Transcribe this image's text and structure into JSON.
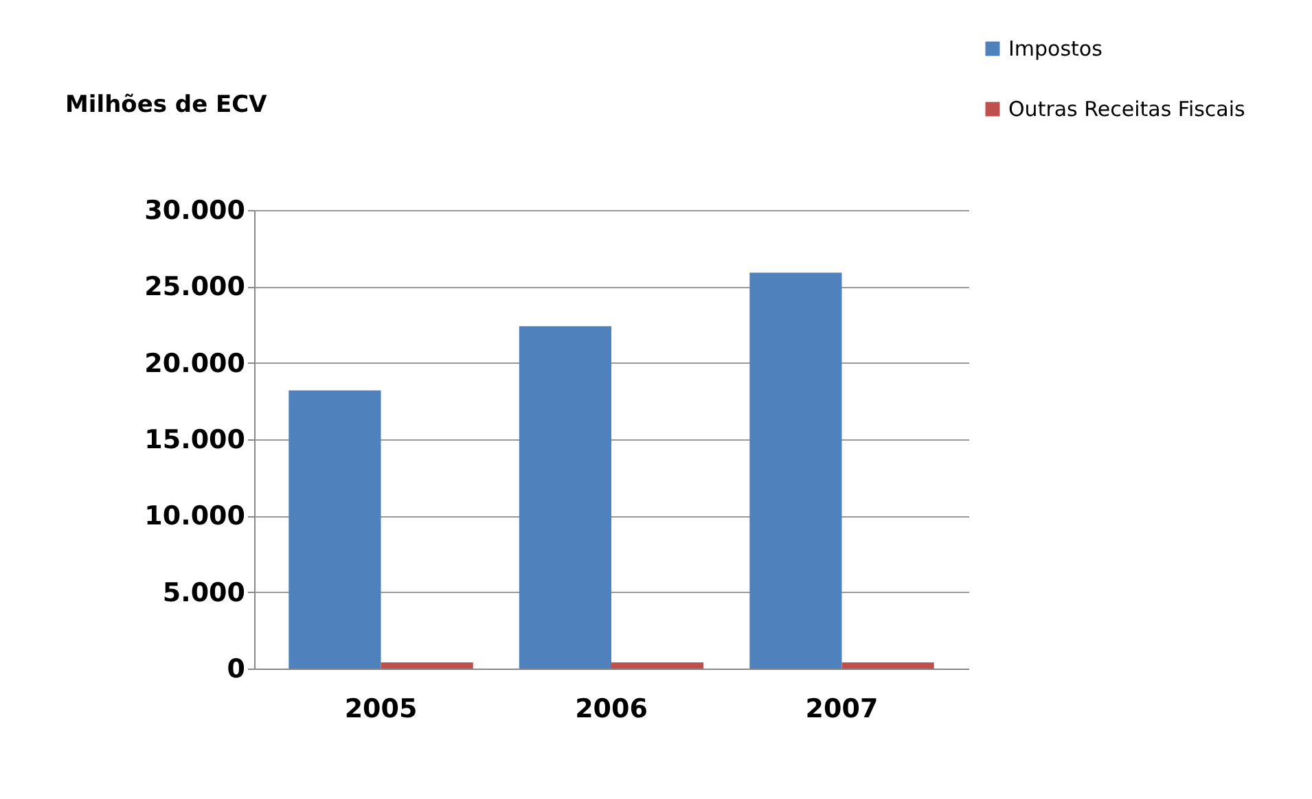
{
  "chart_data": {
    "type": "bar",
    "ylabel": "Milhões de ECV",
    "categories": [
      "2005",
      "2006",
      "2007"
    ],
    "series": [
      {
        "name": "Impostos",
        "color": "#4f81bd",
        "values": [
          18200,
          22400,
          25900
        ]
      },
      {
        "name": "Outras Receitas  Fiscais",
        "color": "#c0504d",
        "values": [
          400,
          400,
          400
        ]
      }
    ],
    "ylim": [
      0,
      30000
    ],
    "yticks": [
      {
        "value": 0,
        "label": "0"
      },
      {
        "value": 5000,
        "label": "5.000"
      },
      {
        "value": 10000,
        "label": "10.000"
      },
      {
        "value": 15000,
        "label": "15.000"
      },
      {
        "value": 20000,
        "label": "20.000"
      },
      {
        "value": 25000,
        "label": "25.000"
      },
      {
        "value": 30000,
        "label": "30.000"
      }
    ],
    "grid": "y",
    "legend": "top right"
  }
}
